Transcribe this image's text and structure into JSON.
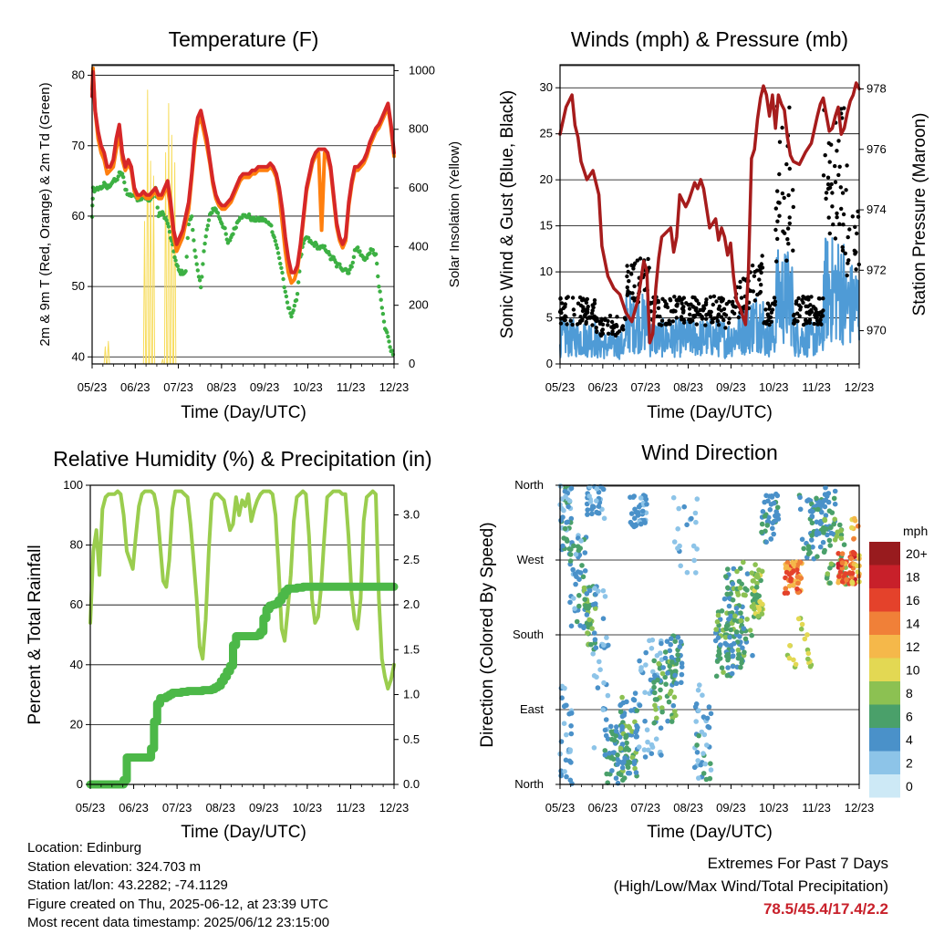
{
  "colors": {
    "temp2m": "#d62728",
    "temp9m": "#ff7f0e",
    "dewpoint": "#3cb043",
    "solar": "#f7dc5b",
    "wind": "#4f9bd6",
    "gust": "#000000",
    "pressure": "#a61c1c",
    "rh": "#9acd4e",
    "precip": "#4cb848"
  },
  "time_ticks": [
    "05/23",
    "06/23",
    "07/23",
    "08/23",
    "09/23",
    "10/23",
    "11/23",
    "12/23"
  ],
  "chart_data": [
    {
      "id": "temperature",
      "type": "line",
      "title": "Temperature (F)",
      "xlabel": "Time (Day/UTC)",
      "ylabel": "2m & 9m T (Red, Orange) & 2m Td (Green)",
      "y2label": "Solar Insolation (Yellow)",
      "ylim": [
        39,
        81.5
      ],
      "yticks": [
        40,
        50,
        60,
        70,
        80
      ],
      "y2lim": [
        0,
        1020
      ],
      "y2ticks": [
        0,
        200,
        400,
        600,
        800,
        1000
      ],
      "x": [
        0,
        0.3,
        1,
        2,
        3,
        4,
        5,
        6,
        7,
        8,
        9,
        10,
        11,
        12,
        13,
        14,
        15,
        16,
        17,
        18,
        19,
        20,
        21,
        22,
        23,
        24,
        25,
        26,
        27,
        28,
        29,
        30,
        31,
        32,
        33,
        34,
        35,
        36,
        37,
        38,
        39,
        40,
        41,
        42,
        43,
        44,
        45,
        46,
        47,
        48,
        49,
        50,
        51,
        52,
        53,
        54,
        55,
        56,
        57,
        58,
        59,
        60,
        61,
        62,
        63,
        64,
        65,
        66,
        67,
        68,
        69,
        70,
        71,
        72,
        73,
        74,
        75,
        76,
        77,
        78,
        79,
        80,
        81,
        82,
        83,
        84,
        85,
        86,
        87,
        88,
        89,
        90,
        91,
        92,
        93,
        94,
        95,
        96,
        97,
        98,
        99,
        100
      ],
      "series": [
        {
          "key": "t2m",
          "values": [
            77,
            80.5,
            75,
            72,
            70,
            69,
            67,
            67,
            68,
            71,
            73,
            69,
            67,
            68,
            67,
            64,
            63,
            63,
            63.5,
            63,
            63,
            63.5,
            64,
            63,
            63,
            64,
            65,
            62,
            58,
            56,
            57,
            58,
            60,
            62,
            66,
            71,
            74,
            75,
            73,
            71,
            68,
            65,
            63,
            62,
            61.5,
            61.5,
            62,
            62.5,
            63.5,
            64.5,
            65.5,
            66,
            66,
            66,
            66.5,
            66.5,
            67,
            67,
            67,
            67,
            67.5,
            67,
            66,
            64,
            61,
            57,
            54,
            52,
            52,
            53,
            56,
            60,
            64,
            66,
            68,
            69,
            69.5,
            69.5,
            69.5,
            69,
            67,
            63,
            59,
            57,
            56,
            57,
            62,
            65,
            67,
            67,
            67.5,
            68,
            69,
            70.5,
            71.5,
            72.5,
            73,
            74,
            75,
            76,
            73,
            69
          ]
        },
        {
          "key": "t9m",
          "values": [
            78,
            81,
            75,
            71,
            69,
            68,
            66,
            66.5,
            67,
            69.5,
            72,
            68,
            66.5,
            67.5,
            66.5,
            63.5,
            62.5,
            63,
            63,
            62.5,
            62.5,
            63,
            63.5,
            62.5,
            62.5,
            63.5,
            64,
            61,
            57,
            55,
            56,
            57,
            59,
            61,
            65.5,
            70,
            73,
            74,
            72,
            70,
            67.5,
            64.5,
            62.5,
            61.5,
            61,
            61,
            61.5,
            62,
            63,
            64,
            65,
            65.5,
            65.5,
            65.5,
            66,
            66,
            66.5,
            66.5,
            66.5,
            66.5,
            67,
            66.5,
            65.5,
            63,
            59,
            55,
            52,
            50.5,
            51,
            52.5,
            55.5,
            59.5,
            63.5,
            65.5,
            67.5,
            68.5,
            69,
            58,
            69,
            68.5,
            66.5,
            62.5,
            58.5,
            56.5,
            55.5,
            56.5,
            61.5,
            64.5,
            66.5,
            66.5,
            67,
            67.5,
            68.5,
            70,
            71,
            72,
            72.5,
            73.5,
            74.5,
            75.5,
            72.5,
            68.5
          ]
        },
        {
          "key": "td",
          "values": [
            60,
            64,
            63.5,
            64,
            64,
            64.5,
            64,
            64.5,
            65,
            65,
            66,
            66,
            64,
            63,
            63,
            63,
            62.5,
            62.5,
            63,
            62.5,
            62,
            63,
            64,
            60,
            60.5,
            60,
            59,
            57,
            55,
            53,
            52,
            52,
            52,
            59,
            60,
            55,
            52,
            50,
            55,
            58,
            60,
            61,
            61,
            60,
            59,
            58,
            56,
            57,
            58,
            59,
            60,
            60,
            60,
            60,
            59.5,
            59.5,
            59.5,
            59.5,
            59.5,
            59,
            59,
            57.5,
            56,
            54,
            52,
            49,
            47,
            46,
            47,
            49,
            54,
            56,
            57,
            56.5,
            56,
            56,
            55.5,
            55.5,
            55.5,
            55,
            54,
            54,
            53,
            53,
            52.5,
            52.5,
            52,
            53,
            55,
            55.5,
            54.5,
            54,
            54,
            55,
            55,
            54.5,
            50,
            47,
            44,
            43,
            41,
            40
          ]
        },
        {
          "key": "solar",
          "values": [
            0,
            0,
            0,
            0,
            0,
            60,
            90,
            0,
            0,
            0,
            0,
            0,
            0,
            0,
            0,
            0,
            0,
            0,
            500,
            850,
            700,
            650,
            0,
            0,
            20,
            680,
            890,
            750,
            680,
            0,
            0,
            0,
            0,
            0,
            0,
            0,
            0,
            0,
            0,
            0,
            0,
            0,
            0,
            0,
            0,
            0,
            0,
            0,
            0,
            0,
            0,
            0,
            0,
            0,
            0,
            0,
            0,
            0,
            0,
            0,
            0,
            0,
            0,
            0,
            0,
            0,
            0,
            0,
            0,
            0,
            0,
            0,
            0,
            0,
            0,
            0,
            0,
            0,
            0,
            0,
            0,
            0,
            0,
            0,
            0,
            0,
            0,
            0,
            0,
            0,
            0,
            0,
            0,
            0,
            0,
            0,
            0,
            0,
            0,
            0,
            0,
            0
          ]
        }
      ]
    },
    {
      "id": "winds",
      "type": "scatter",
      "title": "Winds (mph) & Pressure (mb)",
      "xlabel": "Time (Day/UTC)",
      "ylabel": "Sonic Wind & Gust (Blue, Black)",
      "y2label": "Station Pressure (Maroon)",
      "ylim": [
        0,
        32.5
      ],
      "yticks": [
        0,
        5,
        10,
        15,
        20,
        25,
        30
      ],
      "y2lim": [
        968.9,
        978.8
      ],
      "y2ticks": [
        970,
        972,
        974,
        976,
        978
      ],
      "pressure_x": [
        0,
        2,
        4,
        5,
        6,
        7,
        9,
        11,
        13,
        14,
        16,
        18,
        20,
        22,
        24,
        26,
        28,
        29,
        30,
        31,
        32,
        33,
        34,
        35,
        37,
        38,
        39,
        40,
        42,
        43,
        44,
        45,
        46,
        47,
        48,
        50,
        52,
        53,
        54,
        55,
        56,
        57,
        58,
        59,
        60,
        62,
        63,
        64,
        65,
        66,
        67,
        68,
        69,
        70,
        71,
        72,
        73,
        74,
        75,
        76,
        77,
        78,
        80,
        82,
        84,
        86,
        87,
        88,
        90,
        91,
        92,
        93,
        94,
        95,
        96,
        97,
        98,
        99,
        100
      ],
      "pressure": [
        976.5,
        977.4,
        977.8,
        976.8,
        976.4,
        975.6,
        975,
        975.3,
        974.5,
        972.8,
        971.8,
        971.4,
        971.2,
        970.6,
        970.3,
        971,
        972.3,
        972,
        969.6,
        969.9,
        971.4,
        972.4,
        973.1,
        973.2,
        973.4,
        972.6,
        973.1,
        974.5,
        974.1,
        974.3,
        974.6,
        974.9,
        974.7,
        975,
        974.7,
        973.4,
        973.7,
        973,
        973.4,
        973.1,
        972.5,
        972.9,
        971.8,
        971,
        970.8,
        970.2,
        972,
        975.7,
        976,
        977,
        977.7,
        978.1,
        977.8,
        977.1,
        977.8,
        976.7,
        977.8,
        977.5,
        977.3,
        976.4,
        975.8,
        975.6,
        975.5,
        975.9,
        976.2,
        977.1,
        977.5,
        977.7,
        976.6,
        976.7,
        977.1,
        977.4,
        976.5,
        976.7,
        977.2,
        977.6,
        977.8,
        978.2,
        978
      ]
    },
    {
      "id": "humidity",
      "type": "line",
      "title": "Relative Humidity (%) & Precipitation (in)",
      "xlabel": "Time (Day/UTC)",
      "ylabel": "Percent & Total Rainfall",
      "ylim": [
        0,
        100
      ],
      "yticks": [
        0,
        20,
        40,
        60,
        80,
        100
      ],
      "y2lim": [
        0,
        3.33
      ],
      "y2ticks": [
        "0.0",
        "0.5",
        "1.0",
        "1.5",
        "2.0",
        "2.5",
        "3.0"
      ],
      "x": [
        0,
        1,
        2,
        3,
        4,
        5,
        6,
        7,
        8,
        9,
        10,
        11,
        12,
        13,
        14,
        15,
        16,
        17,
        18,
        19,
        20,
        21,
        22,
        23,
        24,
        25,
        26,
        27,
        28,
        29,
        30,
        31,
        32,
        33,
        34,
        35,
        36,
        37,
        38,
        39,
        40,
        41,
        42,
        43,
        44,
        45,
        46,
        47,
        48,
        49,
        50,
        51,
        52,
        53,
        54,
        55,
        56,
        57,
        58,
        59,
        60,
        61,
        62,
        63,
        64,
        65,
        66,
        67,
        68,
        69,
        70,
        71,
        72,
        73,
        74,
        75,
        76,
        77,
        78,
        79,
        80,
        81,
        82,
        83,
        84,
        85,
        86,
        87,
        88,
        89,
        90,
        91,
        92,
        93,
        94,
        95,
        96,
        97,
        98,
        99,
        100
      ],
      "series": [
        {
          "key": "rh",
          "values": [
            54,
            78,
            85,
            70,
            92,
            96,
            97,
            97,
            97,
            98,
            97,
            90,
            78,
            75,
            72,
            83,
            93,
            97,
            98,
            98,
            98,
            97,
            92,
            80,
            68,
            66,
            75,
            92,
            98,
            98,
            98,
            97,
            96,
            87,
            75,
            62,
            46,
            42,
            55,
            78,
            95,
            97,
            97,
            96,
            95,
            90,
            85,
            87,
            96,
            90,
            95,
            93,
            97,
            88,
            92,
            95,
            97,
            98,
            98,
            98,
            97,
            90,
            72,
            52,
            48,
            58,
            70,
            88,
            96,
            97,
            98,
            97,
            83,
            62,
            54,
            56,
            66,
            82,
            96,
            97,
            98,
            98,
            98,
            97,
            97,
            83,
            64,
            55,
            52,
            62,
            88,
            96,
            97,
            98,
            97,
            62,
            42,
            36,
            32,
            35,
            40
          ]
        },
        {
          "key": "precip",
          "values": [
            0,
            0,
            0,
            0,
            0,
            0,
            0,
            0,
            0,
            0,
            0,
            0.05,
            0.3,
            0.3,
            0.3,
            0.3,
            0.3,
            0.3,
            0.3,
            0.3,
            0.4,
            0.7,
            0.9,
            0.96,
            0.96,
            0.98,
            1.0,
            1.02,
            1.02,
            1.02,
            1.03,
            1.03,
            1.04,
            1.04,
            1.04,
            1.04,
            1.04,
            1.05,
            1.05,
            1.05,
            1.06,
            1.08,
            1.1,
            1.15,
            1.2,
            1.26,
            1.32,
            1.55,
            1.65,
            1.65,
            1.65,
            1.65,
            1.65,
            1.65,
            1.65,
            1.66,
            1.7,
            1.85,
            1.95,
            1.99,
            2.0,
            2.01,
            2.05,
            2.1,
            2.15,
            2.18,
            2.18,
            2.18,
            2.19,
            2.19,
            2.2,
            2.2,
            2.2,
            2.2,
            2.2,
            2.2,
            2.2,
            2.2,
            2.2,
            2.2,
            2.2,
            2.2,
            2.2,
            2.2,
            2.2,
            2.2,
            2.2,
            2.2,
            2.2,
            2.2,
            2.2,
            2.2,
            2.2,
            2.2,
            2.2,
            2.2,
            2.2,
            2.2,
            2.2,
            2.2,
            2.2
          ]
        }
      ]
    },
    {
      "id": "direction",
      "type": "scatter",
      "title": "Wind Direction",
      "xlabel": "Time (Day/UTC)",
      "ylabel": "Direction (Colored By Speed)",
      "ylim": [
        0,
        360
      ],
      "yticks": [
        "North",
        "East",
        "South",
        "West",
        "North"
      ],
      "legend_title": "mph",
      "legend_labels": [
        "0",
        "2",
        "4",
        "6",
        "8",
        "10",
        "12",
        "14",
        "16",
        "18",
        "20+"
      ],
      "legend_colors": [
        "#cde9f6",
        "#8dc4e8",
        "#4a91c9",
        "#4aa06a",
        "#8cc152",
        "#e3d853",
        "#f5b84a",
        "#f08038",
        "#e4422b",
        "#c8202a",
        "#981b1e"
      ]
    }
  ],
  "info": {
    "location": "Location: Edinburg",
    "elevation": "Station elevation: 324.703 m",
    "latlon": "Station lat/lon: 43.2282; -74.1129",
    "created": "Figure created on Thu, 2025-06-12, at 23:39 UTC",
    "recent": "Most recent data timestamp: 2025/06/12 23:15:00"
  },
  "extremes": {
    "title": "Extremes For Past 7 Days",
    "subtitle": "(High/Low/Max Wind/Total Precipitation)",
    "values": "78.5/45.4/17.4/2.2"
  }
}
